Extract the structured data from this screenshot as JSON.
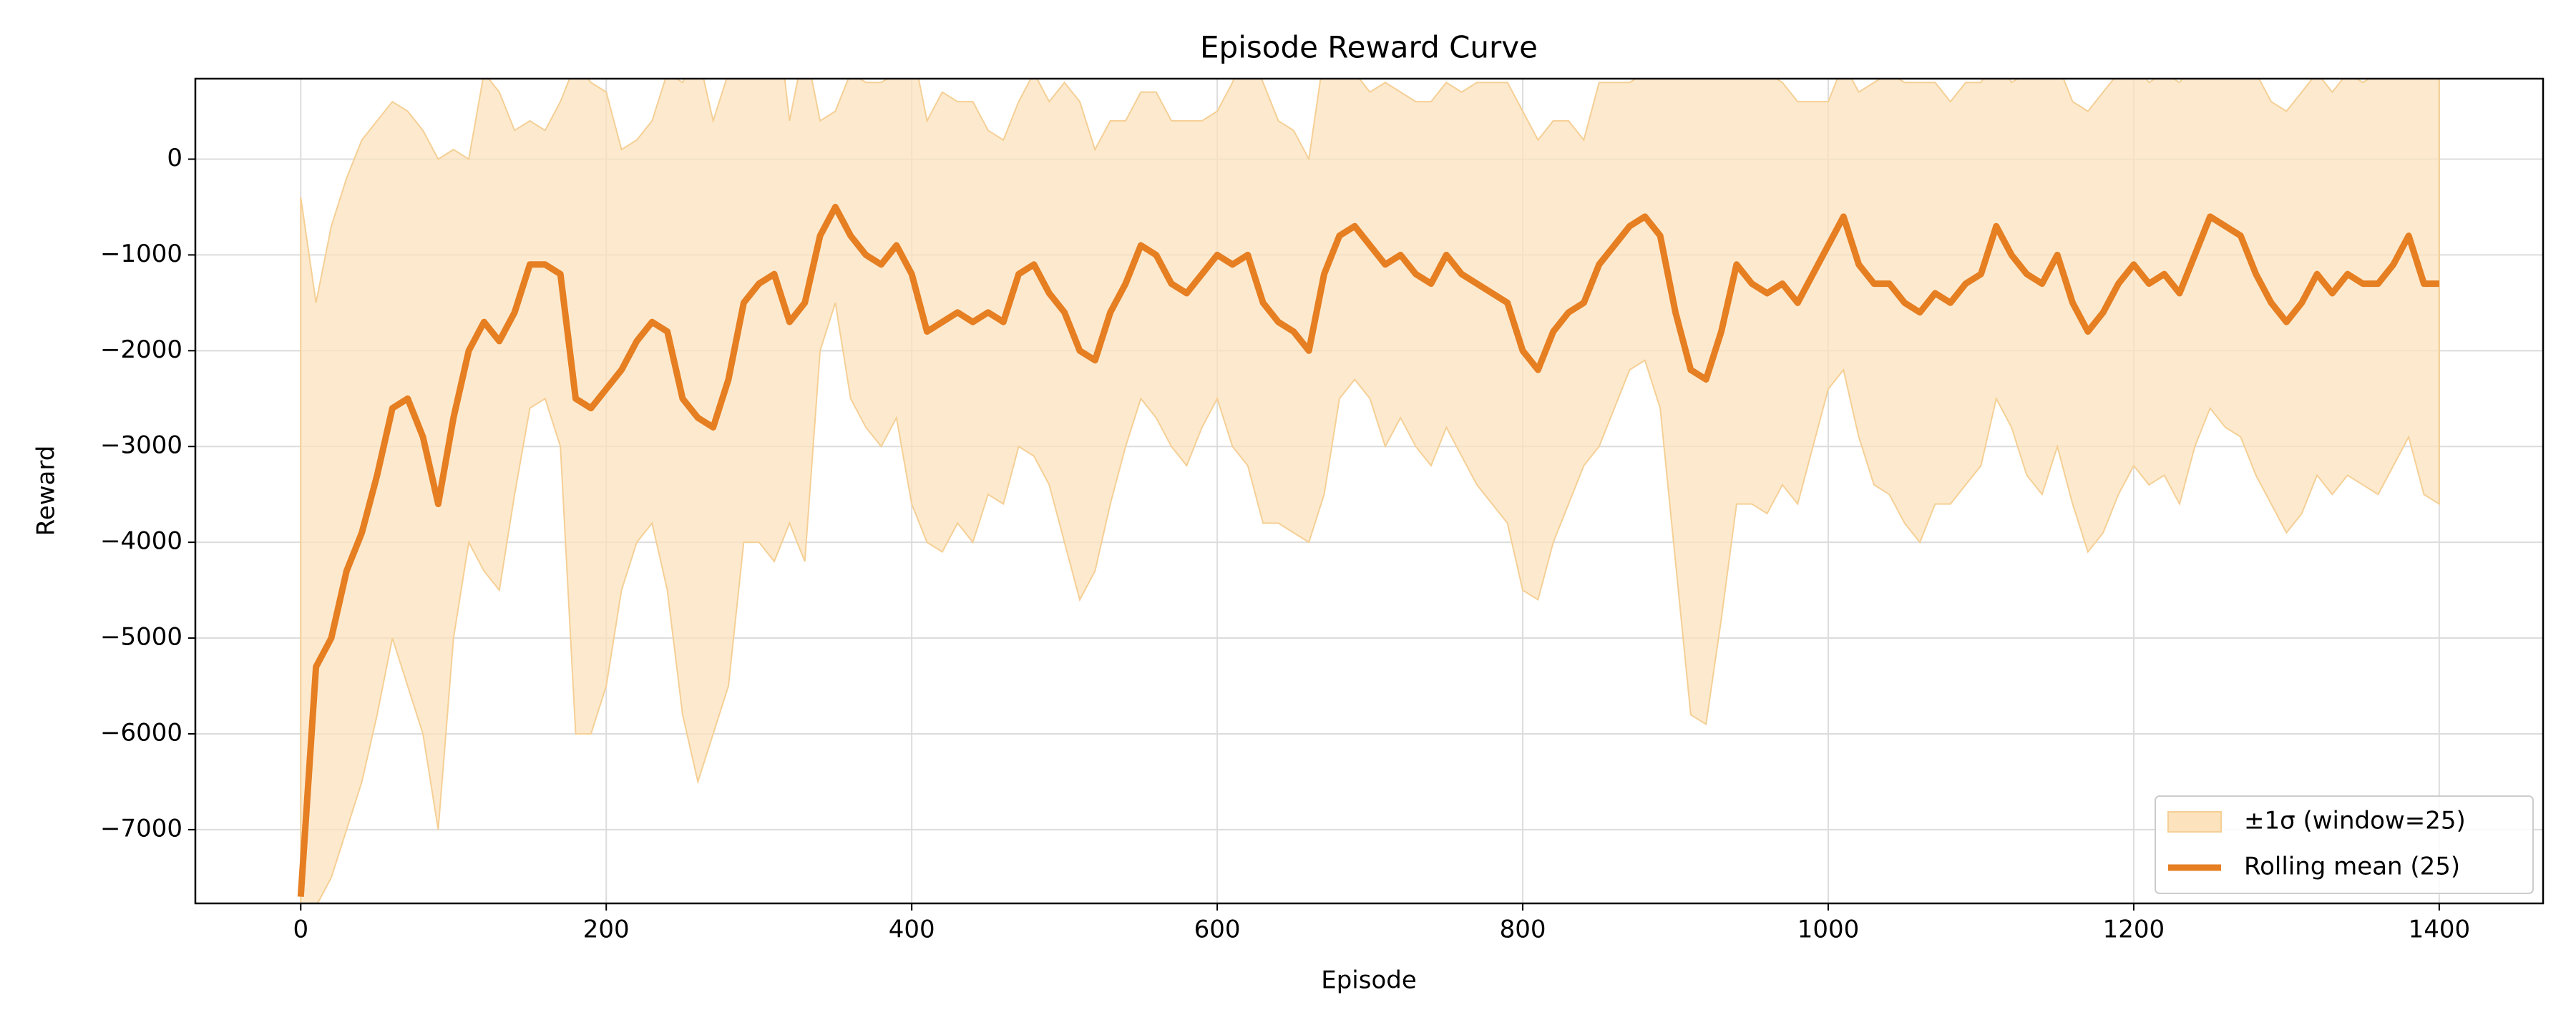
{
  "chart_data": {
    "type": "line",
    "title": "Episode Reward Curve",
    "x_label": "Episode",
    "y_label": "Reward",
    "x": [
      0,
      10,
      20,
      30,
      40,
      50,
      60,
      70,
      80,
      90,
      100,
      110,
      120,
      130,
      140,
      150,
      160,
      170,
      180,
      190,
      200,
      210,
      220,
      230,
      240,
      250,
      260,
      270,
      280,
      290,
      300,
      310,
      320,
      330,
      340,
      350,
      360,
      370,
      380,
      390,
      400,
      410,
      420,
      430,
      440,
      450,
      460,
      470,
      480,
      490,
      500,
      510,
      520,
      530,
      540,
      550,
      560,
      570,
      580,
      590,
      600,
      610,
      620,
      630,
      640,
      650,
      660,
      670,
      680,
      690,
      700,
      710,
      720,
      730,
      740,
      750,
      760,
      770,
      780,
      790,
      800,
      810,
      820,
      830,
      840,
      850,
      860,
      870,
      880,
      890,
      900,
      910,
      920,
      930,
      940,
      950,
      960,
      970,
      980,
      990,
      1000,
      1010,
      1020,
      1030,
      1040,
      1050,
      1060,
      1070,
      1080,
      1090,
      1100,
      1110,
      1120,
      1130,
      1140,
      1150,
      1160,
      1170,
      1180,
      1190,
      1200,
      1210,
      1220,
      1230,
      1240,
      1250,
      1260,
      1270,
      1280,
      1290,
      1300,
      1310,
      1320,
      1330,
      1340,
      1350,
      1360,
      1370,
      1380,
      1390,
      1400
    ],
    "series": [
      {
        "name": "±1σ (window=25)",
        "color": "#fce3bd",
        "lower": [
          -9000,
          -7800,
          -7500,
          -7000,
          -6500,
          -5800,
          -5000,
          -5500,
          -6000,
          -7000,
          -5000,
          -4000,
          -4300,
          -4500,
          -3500,
          -2600,
          -2500,
          -3000,
          -6000,
          -6000,
          -5500,
          -4500,
          -4000,
          -3800,
          -4500,
          -5800,
          -6500,
          -6000,
          -5500,
          -4000,
          -4000,
          -4200,
          -3800,
          -4200,
          -2000,
          -1500,
          -2500,
          -2800,
          -3000,
          -2700,
          -3600,
          -4000,
          -4100,
          -3800,
          -4000,
          -3500,
          -3600,
          -3000,
          -3100,
          -3400,
          -4000,
          -4600,
          -4300,
          -3600,
          -3000,
          -2500,
          -2700,
          -3000,
          -3200,
          -2800,
          -2500,
          -3000,
          -3200,
          -3800,
          -3800,
          -3900,
          -4000,
          -3500,
          -2500,
          -2300,
          -2500,
          -3000,
          -2700,
          -3000,
          -3200,
          -2800,
          -3100,
          -3400,
          -3600,
          -3800,
          -4500,
          -4600,
          -4000,
          -3600,
          -3200,
          -3000,
          -2600,
          -2200,
          -2100,
          -2600,
          -4200,
          -5800,
          -5900,
          -4800,
          -3600,
          -3600,
          -3700,
          -3400,
          -3600,
          -3000,
          -2400,
          -2200,
          -2900,
          -3400,
          -3500,
          -3800,
          -4000,
          -3600,
          -3600,
          -3400,
          -3200,
          -2500,
          -2800,
          -3300,
          -3500,
          -3000,
          -3600,
          -4100,
          -3900,
          -3500,
          -3200,
          -3400,
          -3300,
          -3600,
          -3000,
          -2600,
          -2800,
          -2900,
          -3300,
          -3600,
          -3900,
          -3700,
          -3300,
          -3500,
          -3300,
          -3400,
          -3500,
          -3200,
          -2900,
          -3500,
          -3600
        ],
        "upper": [
          -400,
          -1500,
          -700,
          -200,
          200,
          400,
          600,
          500,
          300,
          0,
          100,
          0,
          900,
          700,
          300,
          400,
          300,
          600,
          1000,
          800,
          700,
          100,
          200,
          400,
          900,
          800,
          1100,
          400,
          900,
          1000,
          1400,
          1800,
          400,
          1200,
          400,
          500,
          900,
          800,
          800,
          900,
          1200,
          400,
          700,
          600,
          600,
          300,
          200,
          600,
          900,
          600,
          800,
          600,
          100,
          400,
          400,
          700,
          700,
          400,
          400,
          400,
          500,
          800,
          1200,
          800,
          400,
          300,
          0,
          1100,
          900,
          900,
          700,
          800,
          700,
          600,
          600,
          800,
          700,
          800,
          800,
          800,
          500,
          200,
          400,
          400,
          200,
          800,
          800,
          800,
          900,
          1000,
          1000,
          1400,
          1300,
          1200,
          1400,
          1000,
          900,
          800,
          600,
          600,
          600,
          1000,
          700,
          800,
          900,
          800,
          800,
          800,
          600,
          800,
          800,
          1100,
          800,
          900,
          900,
          1000,
          600,
          500,
          700,
          900,
          1000,
          800,
          900,
          800,
          1000,
          1400,
          1400,
          1300,
          900,
          600,
          500,
          700,
          900,
          700,
          900,
          800,
          900,
          1000,
          1300,
          900,
          1000
        ]
      },
      {
        "name": "Rolling mean (25)",
        "color": "#e67e22",
        "values": [
          -7700,
          -5300,
          -5000,
          -4300,
          -3900,
          -3300,
          -2600,
          -2500,
          -2900,
          -3600,
          -2700,
          -2000,
          -1700,
          -1900,
          -1600,
          -1100,
          -1100,
          -1200,
          -2500,
          -2600,
          -2400,
          -2200,
          -1900,
          -1700,
          -1800,
          -2500,
          -2700,
          -2800,
          -2300,
          -1500,
          -1300,
          -1200,
          -1700,
          -1500,
          -800,
          -500,
          -800,
          -1000,
          -1100,
          -900,
          -1200,
          -1800,
          -1700,
          -1600,
          -1700,
          -1600,
          -1700,
          -1200,
          -1100,
          -1400,
          -1600,
          -2000,
          -2100,
          -1600,
          -1300,
          -900,
          -1000,
          -1300,
          -1400,
          -1200,
          -1000,
          -1100,
          -1000,
          -1500,
          -1700,
          -1800,
          -2000,
          -1200,
          -800,
          -700,
          -900,
          -1100,
          -1000,
          -1200,
          -1300,
          -1000,
          -1200,
          -1300,
          -1400,
          -1500,
          -2000,
          -2200,
          -1800,
          -1600,
          -1500,
          -1100,
          -900,
          -700,
          -600,
          -800,
          -1600,
          -2200,
          -2300,
          -1800,
          -1100,
          -1300,
          -1400,
          -1300,
          -1500,
          -1200,
          -900,
          -600,
          -1100,
          -1300,
          -1300,
          -1500,
          -1600,
          -1400,
          -1500,
          -1300,
          -1200,
          -700,
          -1000,
          -1200,
          -1300,
          -1000,
          -1500,
          -1800,
          -1600,
          -1300,
          -1100,
          -1300,
          -1200,
          -1400,
          -1000,
          -600,
          -700,
          -800,
          -1200,
          -1500,
          -1700,
          -1500,
          -1200,
          -1400,
          -1200,
          -1300,
          -1300,
          -1100,
          -800,
          -1300,
          -1300
        ]
      }
    ],
    "xlim": [
      -69,
      1468
    ],
    "ylim": [
      -7770,
      840
    ],
    "xticks": [
      0,
      200,
      400,
      600,
      800,
      1000,
      1200,
      1400
    ],
    "yticks": [
      {
        "value": -7000,
        "label": "−7000"
      },
      {
        "value": -6000,
        "label": "−6000"
      },
      {
        "value": -5000,
        "label": "−5000"
      },
      {
        "value": -4000,
        "label": "−4000"
      },
      {
        "value": -3000,
        "label": "−3000"
      },
      {
        "value": -2000,
        "label": "−2000"
      },
      {
        "value": -1000,
        "label": "−1000"
      },
      0
    ],
    "grid": true,
    "legend": "lower right"
  }
}
